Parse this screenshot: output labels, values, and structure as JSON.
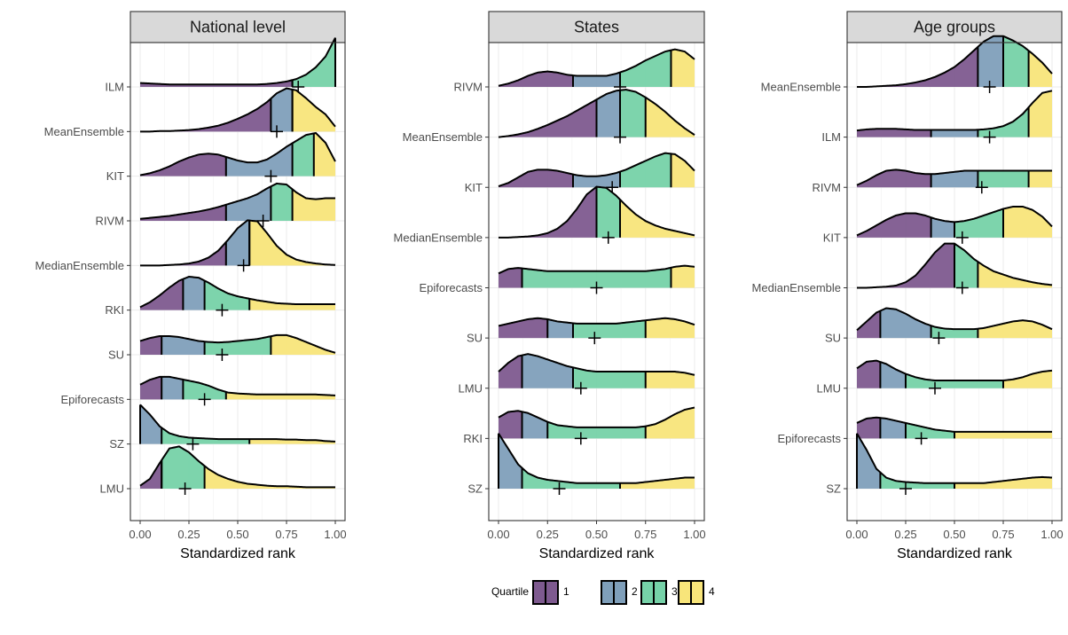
{
  "chart_data": {
    "type": "ridgeline",
    "xlabel": "Standardized rank",
    "xlim": [
      0,
      1
    ],
    "x_ticks": [
      0,
      0.25,
      0.5,
      0.75,
      1
    ],
    "x_tick_labels": [
      "0.00",
      "0.25",
      "0.50",
      "0.75",
      "1.00"
    ],
    "legend": {
      "title": "Quartile",
      "placement": "bottom",
      "items": [
        {
          "label": "1",
          "color": "#7e5a8f"
        },
        {
          "label": "2",
          "color": "#7f9fba"
        },
        {
          "label": "3",
          "color": "#76d2a8"
        },
        {
          "label": "4",
          "color": "#f8e57a"
        }
      ]
    },
    "panels": [
      {
        "title": "National level",
        "rows": [
          {
            "name": "ILM",
            "mean": 0.81,
            "quartiles": [
              0.78,
              0.78,
              1.0
            ],
            "density": [
              0.08,
              0.07,
              0.06,
              0.05,
              0.05,
              0.05,
              0.05,
              0.05,
              0.05,
              0.05,
              0.05,
              0.05,
              0.05,
              0.06,
              0.08,
              0.11,
              0.16,
              0.25,
              0.4,
              0.62,
              1.0
            ]
          },
          {
            "name": "MeanEnsemble",
            "mean": 0.7,
            "quartiles": [
              0.67,
              0.78,
              0.78
            ],
            "density": [
              0.0,
              0.0,
              0.01,
              0.01,
              0.02,
              0.03,
              0.05,
              0.08,
              0.12,
              0.18,
              0.26,
              0.35,
              0.46,
              0.6,
              0.78,
              0.88,
              0.84,
              0.68,
              0.5,
              0.35,
              0.1
            ]
          },
          {
            "name": "KIT",
            "mean": 0.67,
            "quartiles": [
              0.44,
              0.78,
              0.89
            ],
            "density": [
              0.02,
              0.06,
              0.12,
              0.2,
              0.3,
              0.38,
              0.44,
              0.46,
              0.44,
              0.38,
              0.32,
              0.28,
              0.28,
              0.34,
              0.46,
              0.6,
              0.72,
              0.84,
              0.88,
              0.68,
              0.3
            ]
          },
          {
            "name": "RIVM",
            "mean": 0.63,
            "quartiles": [
              0.44,
              0.67,
              0.78
            ],
            "density": [
              0.04,
              0.06,
              0.08,
              0.1,
              0.13,
              0.16,
              0.19,
              0.23,
              0.28,
              0.34,
              0.4,
              0.46,
              0.54,
              0.66,
              0.76,
              0.74,
              0.58,
              0.46,
              0.44,
              0.46,
              0.46
            ]
          },
          {
            "name": "MedianEnsemble",
            "mean": 0.53,
            "quartiles": [
              0.44,
              0.56,
              0.56
            ],
            "density": [
              0.0,
              0.0,
              0.0,
              0.01,
              0.02,
              0.04,
              0.08,
              0.16,
              0.3,
              0.52,
              0.76,
              0.92,
              0.9,
              0.66,
              0.4,
              0.22,
              0.12,
              0.07,
              0.04,
              0.02,
              0.01
            ]
          },
          {
            "name": "RKI",
            "mean": 0.42,
            "quartiles": [
              0.22,
              0.33,
              0.56
            ],
            "density": [
              0.06,
              0.16,
              0.3,
              0.46,
              0.6,
              0.68,
              0.66,
              0.56,
              0.44,
              0.34,
              0.28,
              0.24,
              0.2,
              0.17,
              0.14,
              0.13,
              0.12,
              0.12,
              0.12,
              0.12,
              0.12
            ]
          },
          {
            "name": "SU",
            "mean": 0.42,
            "quartiles": [
              0.11,
              0.33,
              0.67
            ],
            "density": [
              0.28,
              0.34,
              0.38,
              0.38,
              0.36,
              0.32,
              0.28,
              0.26,
              0.25,
              0.26,
              0.28,
              0.3,
              0.32,
              0.36,
              0.4,
              0.4,
              0.34,
              0.26,
              0.18,
              0.1,
              0.04
            ]
          },
          {
            "name": "Epiforecasts",
            "mean": 0.33,
            "quartiles": [
              0.11,
              0.22,
              0.44
            ],
            "density": [
              0.3,
              0.4,
              0.46,
              0.46,
              0.42,
              0.38,
              0.34,
              0.28,
              0.2,
              0.14,
              0.12,
              0.11,
              0.1,
              0.1,
              0.1,
              0.1,
              0.1,
              0.1,
              0.1,
              0.09,
              0.08
            ]
          },
          {
            "name": "SZ",
            "mean": 0.27,
            "quartiles": [
              0.0,
              0.11,
              0.56
            ],
            "density": [
              0.8,
              0.6,
              0.36,
              0.22,
              0.16,
              0.13,
              0.12,
              0.11,
              0.1,
              0.1,
              0.1,
              0.1,
              0.1,
              0.1,
              0.1,
              0.09,
              0.09,
              0.08,
              0.08,
              0.06,
              0.05
            ]
          },
          {
            "name": "LMU",
            "mean": 0.23,
            "quartiles": [
              0.11,
              0.11,
              0.33
            ],
            "density": [
              0.06,
              0.2,
              0.52,
              0.82,
              0.86,
              0.74,
              0.56,
              0.4,
              0.28,
              0.2,
              0.14,
              0.1,
              0.08,
              0.06,
              0.05,
              0.05,
              0.04,
              0.03,
              0.03,
              0.03,
              0.03
            ]
          }
        ]
      },
      {
        "title": "States",
        "rows": [
          {
            "name": "RIVM",
            "mean": 0.62,
            "quartiles": [
              0.38,
              0.62,
              0.88
            ],
            "density": [
              0.02,
              0.06,
              0.12,
              0.2,
              0.26,
              0.28,
              0.26,
              0.22,
              0.2,
              0.2,
              0.2,
              0.2,
              0.24,
              0.3,
              0.38,
              0.48,
              0.56,
              0.64,
              0.68,
              0.64,
              0.5
            ]
          },
          {
            "name": "MeanEnsemble",
            "mean": 0.62,
            "quartiles": [
              0.5,
              0.62,
              0.75
            ],
            "density": [
              0.0,
              0.02,
              0.05,
              0.09,
              0.15,
              0.22,
              0.3,
              0.38,
              0.48,
              0.58,
              0.68,
              0.78,
              0.84,
              0.86,
              0.82,
              0.72,
              0.6,
              0.46,
              0.3,
              0.16,
              0.04
            ]
          },
          {
            "name": "KIT",
            "mean": 0.58,
            "quartiles": [
              0.38,
              0.62,
              0.88
            ],
            "density": [
              0.02,
              0.08,
              0.18,
              0.28,
              0.32,
              0.32,
              0.3,
              0.26,
              0.22,
              0.2,
              0.2,
              0.22,
              0.26,
              0.32,
              0.4,
              0.48,
              0.56,
              0.62,
              0.6,
              0.48,
              0.3
            ]
          },
          {
            "name": "MedianEnsemble",
            "mean": 0.56,
            "quartiles": [
              0.5,
              0.5,
              0.62
            ],
            "density": [
              0.0,
              0.0,
              0.01,
              0.02,
              0.04,
              0.08,
              0.16,
              0.3,
              0.52,
              0.78,
              0.92,
              0.9,
              0.76,
              0.58,
              0.42,
              0.3,
              0.22,
              0.16,
              0.12,
              0.08,
              0.04
            ]
          },
          {
            "name": "Epiforecasts",
            "mean": 0.5,
            "quartiles": [
              0.12,
              0.12,
              0.88
            ],
            "density": [
              0.26,
              0.34,
              0.36,
              0.34,
              0.32,
              0.3,
              0.3,
              0.3,
              0.3,
              0.3,
              0.3,
              0.3,
              0.3,
              0.3,
              0.3,
              0.3,
              0.32,
              0.34,
              0.38,
              0.4,
              0.38
            ]
          },
          {
            "name": "SU",
            "mean": 0.49,
            "quartiles": [
              0.25,
              0.38,
              0.75
            ],
            "density": [
              0.22,
              0.26,
              0.3,
              0.34,
              0.36,
              0.34,
              0.3,
              0.28,
              0.26,
              0.26,
              0.26,
              0.26,
              0.26,
              0.28,
              0.3,
              0.32,
              0.34,
              0.36,
              0.34,
              0.3,
              0.24
            ]
          },
          {
            "name": "LMU",
            "mean": 0.42,
            "quartiles": [
              0.12,
              0.38,
              0.75
            ],
            "density": [
              0.3,
              0.46,
              0.58,
              0.62,
              0.58,
              0.52,
              0.46,
              0.4,
              0.36,
              0.32,
              0.3,
              0.3,
              0.3,
              0.3,
              0.3,
              0.3,
              0.3,
              0.3,
              0.3,
              0.28,
              0.24
            ]
          },
          {
            "name": "RKI",
            "mean": 0.42,
            "quartiles": [
              0.12,
              0.25,
              0.75
            ],
            "density": [
              0.38,
              0.48,
              0.5,
              0.46,
              0.38,
              0.3,
              0.24,
              0.22,
              0.2,
              0.2,
              0.2,
              0.2,
              0.2,
              0.2,
              0.2,
              0.22,
              0.26,
              0.34,
              0.44,
              0.52,
              0.56
            ]
          },
          {
            "name": "SZ",
            "mean": 0.31,
            "quartiles": [
              0.0,
              0.12,
              0.62
            ],
            "density": [
              1.0,
              0.72,
              0.44,
              0.28,
              0.2,
              0.16,
              0.14,
              0.12,
              0.1,
              0.1,
              0.1,
              0.1,
              0.1,
              0.1,
              0.1,
              0.12,
              0.14,
              0.16,
              0.18,
              0.2,
              0.2
            ]
          }
        ]
      },
      {
        "title": "Age groups",
        "rows": [
          {
            "name": "MeanEnsemble",
            "mean": 0.68,
            "quartiles": [
              0.62,
              0.75,
              0.88
            ],
            "density": [
              0.0,
              0.0,
              0.01,
              0.02,
              0.03,
              0.05,
              0.08,
              0.12,
              0.18,
              0.26,
              0.36,
              0.5,
              0.66,
              0.82,
              0.92,
              0.92,
              0.84,
              0.74,
              0.6,
              0.44,
              0.24
            ]
          },
          {
            "name": "ILM",
            "mean": 0.68,
            "quartiles": [
              0.38,
              0.62,
              0.88
            ],
            "density": [
              0.12,
              0.14,
              0.15,
              0.15,
              0.15,
              0.14,
              0.13,
              0.13,
              0.13,
              0.13,
              0.13,
              0.13,
              0.13,
              0.14,
              0.16,
              0.2,
              0.28,
              0.42,
              0.62,
              0.8,
              0.84
            ]
          },
          {
            "name": "RIVM",
            "mean": 0.64,
            "quartiles": [
              0.38,
              0.62,
              0.88
            ],
            "density": [
              0.04,
              0.12,
              0.22,
              0.3,
              0.32,
              0.3,
              0.26,
              0.24,
              0.24,
              0.26,
              0.28,
              0.3,
              0.3,
              0.3,
              0.3,
              0.3,
              0.3,
              0.3,
              0.3,
              0.3,
              0.3
            ]
          },
          {
            "name": "KIT",
            "mean": 0.54,
            "quartiles": [
              0.38,
              0.5,
              0.75
            ],
            "density": [
              0.04,
              0.12,
              0.22,
              0.32,
              0.4,
              0.44,
              0.44,
              0.4,
              0.34,
              0.3,
              0.28,
              0.3,
              0.34,
              0.4,
              0.46,
              0.52,
              0.56,
              0.56,
              0.5,
              0.38,
              0.2
            ]
          },
          {
            "name": "MedianEnsemble",
            "mean": 0.54,
            "quartiles": [
              0.5,
              0.5,
              0.62
            ],
            "density": [
              0.0,
              0.0,
              0.01,
              0.02,
              0.04,
              0.1,
              0.22,
              0.42,
              0.64,
              0.8,
              0.8,
              0.68,
              0.52,
              0.4,
              0.3,
              0.24,
              0.18,
              0.14,
              0.1,
              0.07,
              0.05
            ]
          },
          {
            "name": "SU",
            "mean": 0.42,
            "quartiles": [
              0.12,
              0.38,
              0.62
            ],
            "density": [
              0.14,
              0.3,
              0.46,
              0.54,
              0.52,
              0.44,
              0.34,
              0.26,
              0.2,
              0.17,
              0.16,
              0.16,
              0.16,
              0.18,
              0.22,
              0.26,
              0.3,
              0.32,
              0.3,
              0.24,
              0.16
            ]
          },
          {
            "name": "LMU",
            "mean": 0.4,
            "quartiles": [
              0.12,
              0.25,
              0.75
            ],
            "density": [
              0.36,
              0.48,
              0.5,
              0.44,
              0.34,
              0.26,
              0.2,
              0.16,
              0.14,
              0.14,
              0.14,
              0.14,
              0.14,
              0.14,
              0.14,
              0.14,
              0.16,
              0.2,
              0.26,
              0.3,
              0.32
            ]
          },
          {
            "name": "Epiforecasts",
            "mean": 0.33,
            "quartiles": [
              0.12,
              0.25,
              0.5
            ],
            "density": [
              0.28,
              0.36,
              0.38,
              0.36,
              0.32,
              0.28,
              0.24,
              0.2,
              0.16,
              0.14,
              0.12,
              0.12,
              0.12,
              0.12,
              0.12,
              0.12,
              0.12,
              0.12,
              0.12,
              0.12,
              0.12
            ]
          },
          {
            "name": "SZ",
            "mean": 0.25,
            "quartiles": [
              0.0,
              0.12,
              0.5
            ],
            "density": [
              1.0,
              0.7,
              0.36,
              0.2,
              0.14,
              0.12,
              0.11,
              0.1,
              0.1,
              0.1,
              0.1,
              0.1,
              0.1,
              0.1,
              0.12,
              0.14,
              0.16,
              0.18,
              0.2,
              0.21,
              0.2
            ]
          }
        ]
      }
    ]
  }
}
